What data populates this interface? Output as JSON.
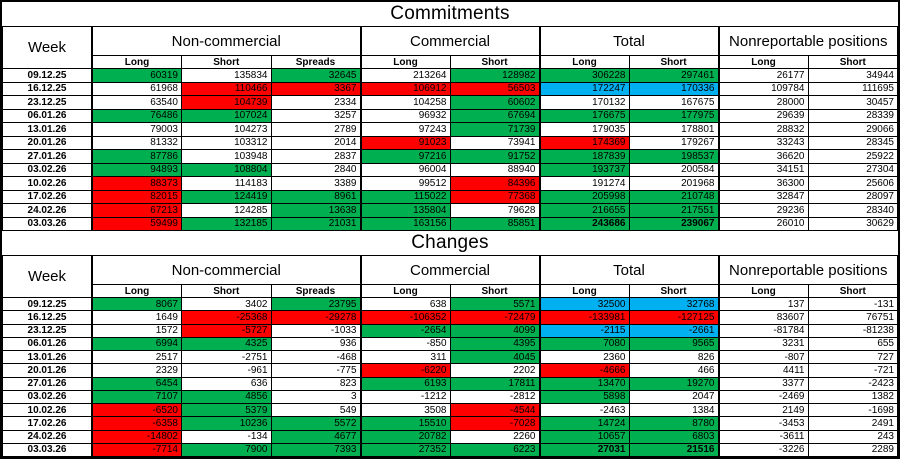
{
  "colors": {
    "positive": "#00B050",
    "negative": "#FF0000",
    "highlight": "#00B0F0",
    "none": "#FFFFFF"
  },
  "columns": {
    "week_header": "Week",
    "groups": [
      {
        "label": "Non-commercial",
        "sub": [
          "Long",
          "Short",
          "Spreads"
        ]
      },
      {
        "label": "Commercial",
        "sub": [
          "Long",
          "Short"
        ]
      },
      {
        "label": "Total",
        "sub": [
          "Long",
          "Short"
        ]
      },
      {
        "label": "Nonreportable positions",
        "sub": [
          "Long",
          "Short"
        ]
      }
    ]
  },
  "tables": [
    {
      "title": "Commitments",
      "rows": [
        {
          "week": "09.12.25",
          "cells": [
            [
              60319,
              "g"
            ],
            [
              135834,
              "w"
            ],
            [
              32645,
              "g"
            ],
            [
              213264,
              "w"
            ],
            [
              128982,
              "g"
            ],
            [
              306228,
              "g"
            ],
            [
              297461,
              "g"
            ],
            [
              26177,
              "w"
            ],
            [
              34944,
              "w"
            ]
          ]
        },
        {
          "week": "16.12.25",
          "cells": [
            [
              61968,
              "w"
            ],
            [
              110466,
              "r"
            ],
            [
              3367,
              "r"
            ],
            [
              106912,
              "r"
            ],
            [
              56503,
              "r"
            ],
            [
              172247,
              "b"
            ],
            [
              170336,
              "b"
            ],
            [
              109784,
              "w"
            ],
            [
              111695,
              "w"
            ]
          ]
        },
        {
          "week": "23.12.25",
          "cells": [
            [
              63540,
              "w"
            ],
            [
              104739,
              "r"
            ],
            [
              2334,
              "w"
            ],
            [
              104258,
              "w"
            ],
            [
              60602,
              "g"
            ],
            [
              170132,
              "w"
            ],
            [
              167675,
              "w"
            ],
            [
              28000,
              "w"
            ],
            [
              30457,
              "w"
            ]
          ]
        },
        {
          "week": "06.01.26",
          "cells": [
            [
              76486,
              "g"
            ],
            [
              107024,
              "g"
            ],
            [
              3257,
              "w"
            ],
            [
              96932,
              "w"
            ],
            [
              67694,
              "g"
            ],
            [
              176675,
              "g"
            ],
            [
              177975,
              "g"
            ],
            [
              29639,
              "w"
            ],
            [
              28339,
              "w"
            ]
          ]
        },
        {
          "week": "13.01.26",
          "cells": [
            [
              79003,
              "w"
            ],
            [
              104273,
              "w"
            ],
            [
              2789,
              "w"
            ],
            [
              97243,
              "w"
            ],
            [
              71739,
              "g"
            ],
            [
              179035,
              "w"
            ],
            [
              178801,
              "w"
            ],
            [
              28832,
              "w"
            ],
            [
              29066,
              "w"
            ]
          ]
        },
        {
          "week": "20.01.26",
          "cells": [
            [
              81332,
              "w"
            ],
            [
              103312,
              "w"
            ],
            [
              2014,
              "w"
            ],
            [
              91023,
              "r"
            ],
            [
              73941,
              "w"
            ],
            [
              174369,
              "r"
            ],
            [
              179267,
              "w"
            ],
            [
              33243,
              "w"
            ],
            [
              28345,
              "w"
            ]
          ]
        },
        {
          "week": "27.01.26",
          "cells": [
            [
              87786,
              "g"
            ],
            [
              103948,
              "w"
            ],
            [
              2837,
              "w"
            ],
            [
              97216,
              "g"
            ],
            [
              91752,
              "g"
            ],
            [
              187839,
              "g"
            ],
            [
              198537,
              "g"
            ],
            [
              36620,
              "w"
            ],
            [
              25922,
              "w"
            ]
          ]
        },
        {
          "week": "03.02.26",
          "cells": [
            [
              94893,
              "g"
            ],
            [
              108804,
              "g"
            ],
            [
              2840,
              "w"
            ],
            [
              96004,
              "w"
            ],
            [
              88940,
              "w"
            ],
            [
              193737,
              "g"
            ],
            [
              200584,
              "w"
            ],
            [
              34151,
              "w"
            ],
            [
              27304,
              "w"
            ]
          ]
        },
        {
          "week": "10.02.26",
          "cells": [
            [
              88373,
              "r"
            ],
            [
              114183,
              "w"
            ],
            [
              3389,
              "w"
            ],
            [
              99512,
              "w"
            ],
            [
              84396,
              "r"
            ],
            [
              191274,
              "w"
            ],
            [
              201968,
              "w"
            ],
            [
              36300,
              "w"
            ],
            [
              25606,
              "w"
            ]
          ]
        },
        {
          "week": "17.02.26",
          "cells": [
            [
              82015,
              "r"
            ],
            [
              124419,
              "g"
            ],
            [
              8961,
              "g"
            ],
            [
              115022,
              "g"
            ],
            [
              77368,
              "r"
            ],
            [
              205998,
              "g"
            ],
            [
              210748,
              "g"
            ],
            [
              32847,
              "w"
            ],
            [
              28097,
              "w"
            ]
          ]
        },
        {
          "week": "24.02.26",
          "cells": [
            [
              67213,
              "r"
            ],
            [
              124285,
              "w"
            ],
            [
              13638,
              "g"
            ],
            [
              135804,
              "g"
            ],
            [
              79628,
              "w"
            ],
            [
              216655,
              "g"
            ],
            [
              217551,
              "g"
            ],
            [
              29236,
              "w"
            ],
            [
              28340,
              "w"
            ]
          ]
        },
        {
          "week": "03.03.26",
          "cells": [
            [
              59499,
              "r"
            ],
            [
              132185,
              "g"
            ],
            [
              21031,
              "g"
            ],
            [
              163156,
              "g"
            ],
            [
              85851,
              "g"
            ],
            [
              243686,
              "g",
              1
            ],
            [
              239067,
              "g",
              1
            ],
            [
              26010,
              "w"
            ],
            [
              30629,
              "w"
            ]
          ]
        }
      ]
    },
    {
      "title": "Changes",
      "rows": [
        {
          "week": "09.12.25",
          "cells": [
            [
              8067,
              "g"
            ],
            [
              3402,
              "w"
            ],
            [
              23795,
              "g"
            ],
            [
              638,
              "w"
            ],
            [
              5571,
              "g"
            ],
            [
              32500,
              "b"
            ],
            [
              32768,
              "b"
            ],
            [
              137,
              "w"
            ],
            [
              -131,
              "w"
            ]
          ]
        },
        {
          "week": "16.12.25",
          "cells": [
            [
              1649,
              "w"
            ],
            [
              -25368,
              "r"
            ],
            [
              -29278,
              "r"
            ],
            [
              -106352,
              "r"
            ],
            [
              -72479,
              "r"
            ],
            [
              -133981,
              "r"
            ],
            [
              -127125,
              "r"
            ],
            [
              83607,
              "w"
            ],
            [
              76751,
              "w"
            ]
          ]
        },
        {
          "week": "23.12.25",
          "cells": [
            [
              1572,
              "w"
            ],
            [
              -5727,
              "r"
            ],
            [
              -1033,
              "w"
            ],
            [
              -2654,
              "g"
            ],
            [
              4099,
              "g"
            ],
            [
              -2115,
              "b"
            ],
            [
              -2661,
              "b"
            ],
            [
              -81784,
              "w"
            ],
            [
              -81238,
              "w"
            ]
          ]
        },
        {
          "week": "06.01.26",
          "cells": [
            [
              6994,
              "g"
            ],
            [
              4325,
              "g"
            ],
            [
              936,
              "w"
            ],
            [
              -850,
              "w"
            ],
            [
              4395,
              "g"
            ],
            [
              7080,
              "g"
            ],
            [
              9565,
              "g"
            ],
            [
              3231,
              "w"
            ],
            [
              655,
              "w"
            ]
          ]
        },
        {
          "week": "13.01.26",
          "cells": [
            [
              2517,
              "w"
            ],
            [
              -2751,
              "w"
            ],
            [
              -468,
              "w"
            ],
            [
              311,
              "w"
            ],
            [
              4045,
              "g"
            ],
            [
              2360,
              "w"
            ],
            [
              826,
              "w"
            ],
            [
              -807,
              "w"
            ],
            [
              727,
              "w"
            ]
          ]
        },
        {
          "week": "20.01.26",
          "cells": [
            [
              2329,
              "w"
            ],
            [
              -961,
              "w"
            ],
            [
              -775,
              "w"
            ],
            [
              -6220,
              "r"
            ],
            [
              2202,
              "w"
            ],
            [
              -4666,
              "r"
            ],
            [
              466,
              "w"
            ],
            [
              4411,
              "w"
            ],
            [
              -721,
              "w"
            ]
          ]
        },
        {
          "week": "27.01.26",
          "cells": [
            [
              6454,
              "g"
            ],
            [
              636,
              "w"
            ],
            [
              823,
              "w"
            ],
            [
              6193,
              "g"
            ],
            [
              17811,
              "g"
            ],
            [
              13470,
              "g"
            ],
            [
              19270,
              "g"
            ],
            [
              3377,
              "w"
            ],
            [
              -2423,
              "w"
            ]
          ]
        },
        {
          "week": "03.02.26",
          "cells": [
            [
              7107,
              "g"
            ],
            [
              4856,
              "g"
            ],
            [
              3,
              "w"
            ],
            [
              -1212,
              "w"
            ],
            [
              -2812,
              "w"
            ],
            [
              5898,
              "g"
            ],
            [
              2047,
              "w"
            ],
            [
              -2469,
              "w"
            ],
            [
              1382,
              "w"
            ]
          ]
        },
        {
          "week": "10.02.26",
          "cells": [
            [
              -6520,
              "r"
            ],
            [
              5379,
              "g"
            ],
            [
              549,
              "w"
            ],
            [
              3508,
              "w"
            ],
            [
              -4544,
              "r"
            ],
            [
              -2463,
              "w"
            ],
            [
              1384,
              "w"
            ],
            [
              2149,
              "w"
            ],
            [
              -1698,
              "w"
            ]
          ]
        },
        {
          "week": "17.02.26",
          "cells": [
            [
              -6358,
              "r"
            ],
            [
              10236,
              "g"
            ],
            [
              5572,
              "g"
            ],
            [
              15510,
              "g"
            ],
            [
              -7028,
              "r"
            ],
            [
              14724,
              "g"
            ],
            [
              8780,
              "g"
            ],
            [
              -3453,
              "w"
            ],
            [
              2491,
              "w"
            ]
          ]
        },
        {
          "week": "24.02.26",
          "cells": [
            [
              -14802,
              "r"
            ],
            [
              -134,
              "w"
            ],
            [
              4677,
              "g"
            ],
            [
              20782,
              "g"
            ],
            [
              2260,
              "w"
            ],
            [
              10657,
              "g"
            ],
            [
              6803,
              "g"
            ],
            [
              -3611,
              "w"
            ],
            [
              243,
              "w"
            ]
          ]
        },
        {
          "week": "03.03.26",
          "cells": [
            [
              -7714,
              "r"
            ],
            [
              7900,
              "g"
            ],
            [
              7393,
              "g"
            ],
            [
              27352,
              "g"
            ],
            [
              6223,
              "g"
            ],
            [
              27031,
              "g",
              1
            ],
            [
              21516,
              "g",
              1
            ],
            [
              -3226,
              "w"
            ],
            [
              2289,
              "w"
            ]
          ]
        }
      ]
    }
  ]
}
